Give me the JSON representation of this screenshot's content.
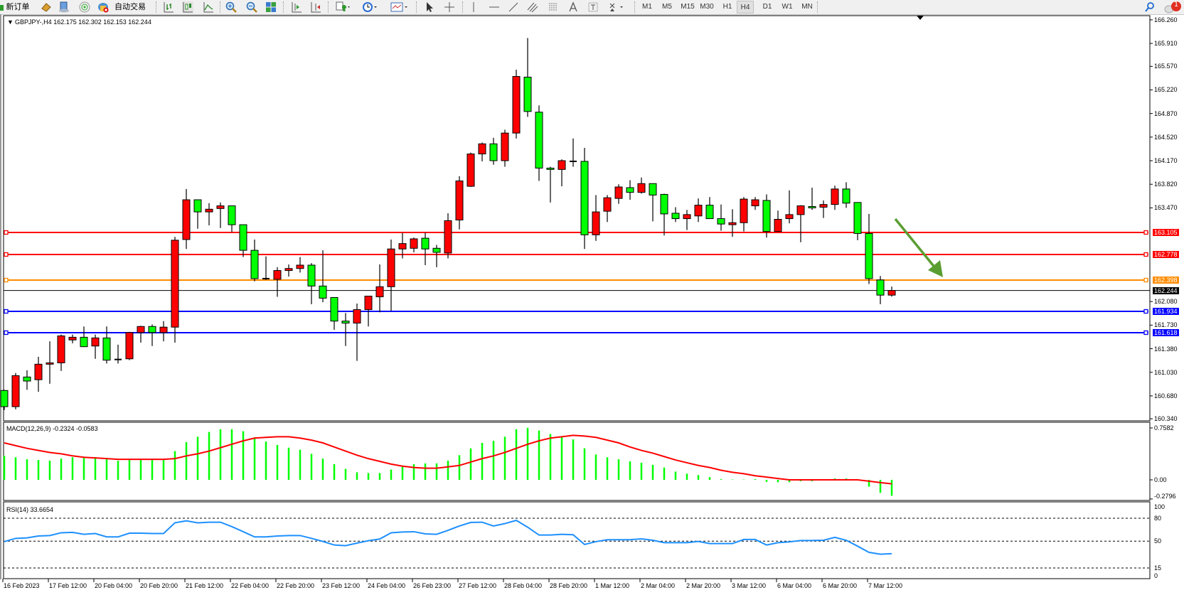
{
  "toolbar": {
    "new_order_label": "新订单",
    "auto_trading_label": "自动交易",
    "timeframes": [
      "M1",
      "M5",
      "M15",
      "M30",
      "H1",
      "H4",
      "D1",
      "W1",
      "MN"
    ],
    "active_timeframe": "H4",
    "notification_count": "1",
    "icons": [
      "new-order-icon",
      "market-watch-icon",
      "navigator-icon",
      "signals-icon",
      "auto-trading-icon",
      "bar-chart-icon",
      "candlestick-icon",
      "line-chart-icon",
      "zoom-in-icon",
      "zoom-out-icon",
      "tile-windows-icon",
      "chart-shift-icon",
      "autoscroll-icon",
      "indicators-icon",
      "periods-icon",
      "templates-icon",
      "cursor-icon",
      "crosshair-icon",
      "vertical-line-icon",
      "horizontal-line-icon",
      "trendline-icon",
      "channel-icon",
      "fibonacci-icon",
      "text-icon",
      "text-label-icon",
      "arrows-icon",
      "search-icon",
      "notification-icon"
    ]
  },
  "chart": {
    "header": "GBPJPY-,H4  162.175 162.302 162.153 162.244",
    "up_color": "#ff0000",
    "down_color": "#00ff00",
    "price_axis": [
      "166.260",
      "165.910",
      "165.570",
      "165.220",
      "164.870",
      "164.520",
      "164.170",
      "163.820",
      "163.470",
      "162.080",
      "161.730",
      "161.380",
      "161.030",
      "160.680",
      "160.340"
    ],
    "hlines": [
      {
        "price": "163.105",
        "color": "#ff0000"
      },
      {
        "price": "162.778",
        "color": "#ff0000"
      },
      {
        "price": "162.398",
        "color": "#ff8c00"
      },
      {
        "price": "161.934",
        "color": "#0000ff"
      },
      {
        "price": "161.618",
        "color": "#0000ff"
      }
    ],
    "current_price": "162.244",
    "arrow_color": "#5a9e32",
    "time_axis": [
      "16 Feb 2023",
      "17 Feb 12:00",
      "20 Feb 04:00",
      "20 Feb 20:00",
      "21 Feb 12:00",
      "22 Feb 04:00",
      "22 Feb 20:00",
      "23 Feb 12:00",
      "24 Feb 04:00",
      "26 Feb 23:00",
      "27 Feb 12:00",
      "28 Feb 04:00",
      "28 Feb 20:00",
      "1 Mar 12:00",
      "2 Mar 04:00",
      "2 Mar 20:00",
      "3 Mar 12:00",
      "6 Mar 04:00",
      "6 Mar 20:00",
      "7 Mar 12:00"
    ]
  },
  "chart_data": {
    "type": "candlestick",
    "symbol": "GBPJPY-",
    "timeframe": "H4",
    "ohlc_fields": [
      "open",
      "high",
      "low",
      "close"
    ],
    "ohlc": [
      [
        160.76,
        160.77,
        160.47,
        160.52
      ],
      [
        160.52,
        161.02,
        160.48,
        160.98
      ],
      [
        160.96,
        161.06,
        160.77,
        160.9
      ],
      [
        160.92,
        161.26,
        160.74,
        161.15
      ],
      [
        161.15,
        161.49,
        160.86,
        161.17
      ],
      [
        161.17,
        161.59,
        161.05,
        161.57
      ],
      [
        161.51,
        161.59,
        161.46,
        161.55
      ],
      [
        161.55,
        161.71,
        161.41,
        161.41
      ],
      [
        161.42,
        161.59,
        161.23,
        161.54
      ],
      [
        161.54,
        161.71,
        161.16,
        161.21
      ],
      [
        161.22,
        161.44,
        161.16,
        161.22
      ],
      [
        161.23,
        161.63,
        161.21,
        161.62
      ],
      [
        161.62,
        161.72,
        161.47,
        161.71
      ],
      [
        161.71,
        161.74,
        161.42,
        161.62
      ],
      [
        161.62,
        161.79,
        161.49,
        161.7
      ],
      [
        161.7,
        163.04,
        161.47,
        162.99
      ],
      [
        163.0,
        163.75,
        162.86,
        163.59
      ],
      [
        163.59,
        163.59,
        163.16,
        163.41
      ],
      [
        163.41,
        163.54,
        163.21,
        163.45
      ],
      [
        163.46,
        163.55,
        163.17,
        163.5
      ],
      [
        163.5,
        163.5,
        163.11,
        163.22
      ],
      [
        163.22,
        163.22,
        162.74,
        162.84
      ],
      [
        162.84,
        163.0,
        162.38,
        162.42
      ],
      [
        162.42,
        162.75,
        162.4,
        162.42
      ],
      [
        162.41,
        162.59,
        162.15,
        162.54
      ],
      [
        162.54,
        162.63,
        162.45,
        162.57
      ],
      [
        162.57,
        162.74,
        162.51,
        162.62
      ],
      [
        162.62,
        162.65,
        162.04,
        162.31
      ],
      [
        162.31,
        162.84,
        162.07,
        162.13
      ],
      [
        162.14,
        162.14,
        161.66,
        161.79
      ],
      [
        161.79,
        161.91,
        161.42,
        161.76
      ],
      [
        161.76,
        162.05,
        161.2,
        161.96
      ],
      [
        161.96,
        162.16,
        161.71,
        162.16
      ],
      [
        162.15,
        162.63,
        161.92,
        162.3
      ],
      [
        162.3,
        163.0,
        161.94,
        162.86
      ],
      [
        162.86,
        163.1,
        162.72,
        162.94
      ],
      [
        162.87,
        163.03,
        162.81,
        163.01
      ],
      [
        163.02,
        163.1,
        162.62,
        162.86
      ],
      [
        162.87,
        162.92,
        162.59,
        162.81
      ],
      [
        162.8,
        163.39,
        162.72,
        163.28
      ],
      [
        163.29,
        163.94,
        163.15,
        163.87
      ],
      [
        163.79,
        164.29,
        163.78,
        164.27
      ],
      [
        164.27,
        164.44,
        164.16,
        164.42
      ],
      [
        164.42,
        164.51,
        164.11,
        164.17
      ],
      [
        164.17,
        164.63,
        164.08,
        164.58
      ],
      [
        164.58,
        165.52,
        164.5,
        165.42
      ],
      [
        165.41,
        165.99,
        164.82,
        164.9
      ],
      [
        164.89,
        164.99,
        163.87,
        164.06
      ],
      [
        164.06,
        164.08,
        163.55,
        164.04
      ],
      [
        164.04,
        164.19,
        163.79,
        164.17
      ],
      [
        164.16,
        164.5,
        164.08,
        164.16
      ],
      [
        164.16,
        164.36,
        162.86,
        163.07
      ],
      [
        163.07,
        163.66,
        162.98,
        163.41
      ],
      [
        163.42,
        163.66,
        163.26,
        163.62
      ],
      [
        163.61,
        163.82,
        163.53,
        163.78
      ],
      [
        163.77,
        163.88,
        163.59,
        163.7
      ],
      [
        163.7,
        163.92,
        163.68,
        163.83
      ],
      [
        163.83,
        163.83,
        163.27,
        163.66
      ],
      [
        163.67,
        163.68,
        163.06,
        163.38
      ],
      [
        163.39,
        163.48,
        163.26,
        163.31
      ],
      [
        163.31,
        163.44,
        163.14,
        163.37
      ],
      [
        163.35,
        163.61,
        163.26,
        163.51
      ],
      [
        163.51,
        163.63,
        163.31,
        163.31
      ],
      [
        163.31,
        163.52,
        163.13,
        163.23
      ],
      [
        163.22,
        163.45,
        163.04,
        163.25
      ],
      [
        163.25,
        163.63,
        163.12,
        163.6
      ],
      [
        163.5,
        163.63,
        163.44,
        163.59
      ],
      [
        163.58,
        163.67,
        163.03,
        163.12
      ],
      [
        163.12,
        163.43,
        163.12,
        163.3
      ],
      [
        163.31,
        163.73,
        163.24,
        163.37
      ],
      [
        163.37,
        163.51,
        162.96,
        163.5
      ],
      [
        163.49,
        163.77,
        163.44,
        163.47
      ],
      [
        163.48,
        163.58,
        163.32,
        163.52
      ],
      [
        163.52,
        163.8,
        163.44,
        163.75
      ],
      [
        163.75,
        163.85,
        163.47,
        163.54
      ],
      [
        163.55,
        163.55,
        162.99,
        163.09
      ],
      [
        163.09,
        163.38,
        162.34,
        162.42
      ],
      [
        162.4,
        162.46,
        162.04,
        162.175
      ],
      [
        162.175,
        162.302,
        162.153,
        162.244
      ]
    ],
    "ylim": [
      160.34,
      166.26
    ],
    "macd": {
      "label": "MACD(12,26,9) -0.2324 -0.0583",
      "axis": [
        "0.7582",
        "0.00",
        "-0.2796"
      ],
      "ylim": [
        -0.2796,
        0.7582
      ],
      "histogram_color": "#00ff00",
      "signal_color": "#ff0000",
      "histogram": [
        0.35,
        0.33,
        0.3,
        0.29,
        0.28,
        0.31,
        0.33,
        0.32,
        0.33,
        0.3,
        0.28,
        0.29,
        0.29,
        0.29,
        0.29,
        0.42,
        0.55,
        0.63,
        0.7,
        0.74,
        0.74,
        0.71,
        0.62,
        0.56,
        0.51,
        0.47,
        0.44,
        0.38,
        0.31,
        0.23,
        0.16,
        0.11,
        0.1,
        0.1,
        0.15,
        0.19,
        0.23,
        0.24,
        0.24,
        0.28,
        0.36,
        0.46,
        0.54,
        0.57,
        0.63,
        0.74,
        0.76,
        0.72,
        0.67,
        0.63,
        0.59,
        0.46,
        0.37,
        0.33,
        0.3,
        0.27,
        0.25,
        0.22,
        0.18,
        0.12,
        0.09,
        0.07,
        0.04,
        0.01,
        0.005,
        0.005,
        0.01,
        -0.03,
        -0.035,
        -0.035,
        -0.02,
        -0.02,
        0.0,
        0.02,
        0.02,
        0.0,
        -0.1,
        -0.19,
        -0.2324
      ],
      "signal": [
        0.54,
        0.5,
        0.46,
        0.43,
        0.4,
        0.38,
        0.35,
        0.33,
        0.32,
        0.31,
        0.3,
        0.3,
        0.3,
        0.3,
        0.3,
        0.31,
        0.35,
        0.38,
        0.42,
        0.47,
        0.52,
        0.57,
        0.61,
        0.62,
        0.63,
        0.63,
        0.61,
        0.58,
        0.54,
        0.48,
        0.42,
        0.36,
        0.31,
        0.27,
        0.23,
        0.2,
        0.18,
        0.17,
        0.17,
        0.19,
        0.21,
        0.26,
        0.31,
        0.35,
        0.4,
        0.46,
        0.52,
        0.57,
        0.61,
        0.63,
        0.65,
        0.64,
        0.62,
        0.58,
        0.54,
        0.48,
        0.43,
        0.39,
        0.34,
        0.29,
        0.25,
        0.21,
        0.18,
        0.14,
        0.11,
        0.09,
        0.06,
        0.04,
        0.02,
        0.0,
        0.0,
        0.0,
        0.0,
        0.0,
        0.0,
        0.0,
        -0.02,
        -0.04,
        -0.0583
      ]
    },
    "rsi": {
      "label": "RSI(14) 33.6654",
      "axis": [
        "100",
        "80",
        "50",
        "15",
        "0"
      ],
      "levels": [
        80,
        50,
        15
      ],
      "ylim": [
        0,
        100
      ],
      "color": "#1e90ff",
      "values": [
        49.4,
        53.7,
        54.3,
        56.8,
        57.4,
        61,
        61.5,
        59,
        60,
        55.6,
        55.6,
        60.5,
        60.5,
        60,
        60,
        74,
        76.6,
        74,
        74.8,
        74.8,
        69,
        62.4,
        55.6,
        55.6,
        56.8,
        57.4,
        57.4,
        53.7,
        49.7,
        45,
        44.1,
        47.5,
        50.6,
        52.8,
        61,
        62,
        62.4,
        59.6,
        59,
        64.2,
        69.8,
        74.5,
        74.8,
        69.8,
        73,
        77.2,
        68.3,
        58,
        58,
        59,
        58.4,
        45.7,
        49.4,
        51.9,
        51.9,
        51.9,
        53.1,
        51.2,
        48.1,
        48.1,
        48.1,
        49.7,
        46.9,
        46.9,
        46.9,
        52.2,
        52.2,
        45,
        48.1,
        49.1,
        50.9,
        50.9,
        51.2,
        55,
        51.2,
        43.5,
        35.4,
        33,
        33.6654
      ]
    }
  }
}
